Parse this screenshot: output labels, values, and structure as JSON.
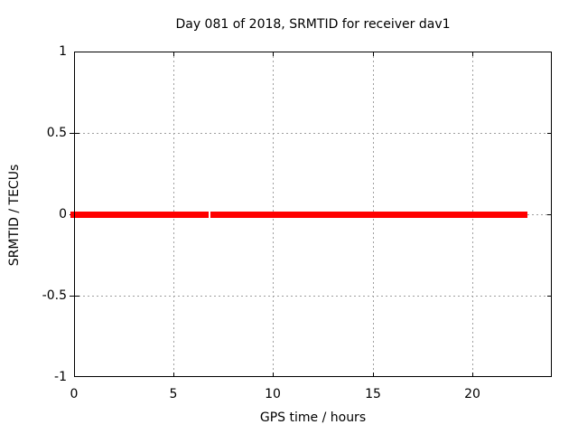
{
  "window": {
    "background_color": "#ffffff"
  },
  "chart_data": {
    "type": "line",
    "title": "Day 081 of 2018, SRMTID for receiver dav1",
    "xlabel": "GPS time / hours",
    "ylabel": "SRMTID / TECUs",
    "xlim": [
      0,
      24
    ],
    "ylim": [
      -1,
      1
    ],
    "xticks": [
      0,
      5,
      10,
      15,
      20
    ],
    "xtick_labels": [
      "0",
      "5",
      "10",
      "15",
      "20"
    ],
    "yticks": [
      1,
      0.5,
      0,
      -0.5,
      -1
    ],
    "ytick_labels": [
      "1",
      "0.5",
      "0",
      "-0.5",
      "-1"
    ],
    "grid": {
      "show": true,
      "style": "dashed",
      "color": "#9e9e9e",
      "x_gridlines": [
        5,
        10,
        15,
        20
      ],
      "y_gridlines": [
        0.5,
        0,
        -0.5
      ]
    },
    "legend": {
      "show": false
    },
    "series": [
      {
        "name": "SRMTID",
        "color": "#ff0000",
        "marker": "dense thick points forming a horizontal bar",
        "line_thickness_px": 7,
        "y_value": 0,
        "segments_x_hours": [
          [
            0,
            6.76
          ],
          [
            6.85,
            22.77
          ]
        ]
      }
    ],
    "axis_color": "#000000",
    "text_color": "#000000"
  }
}
